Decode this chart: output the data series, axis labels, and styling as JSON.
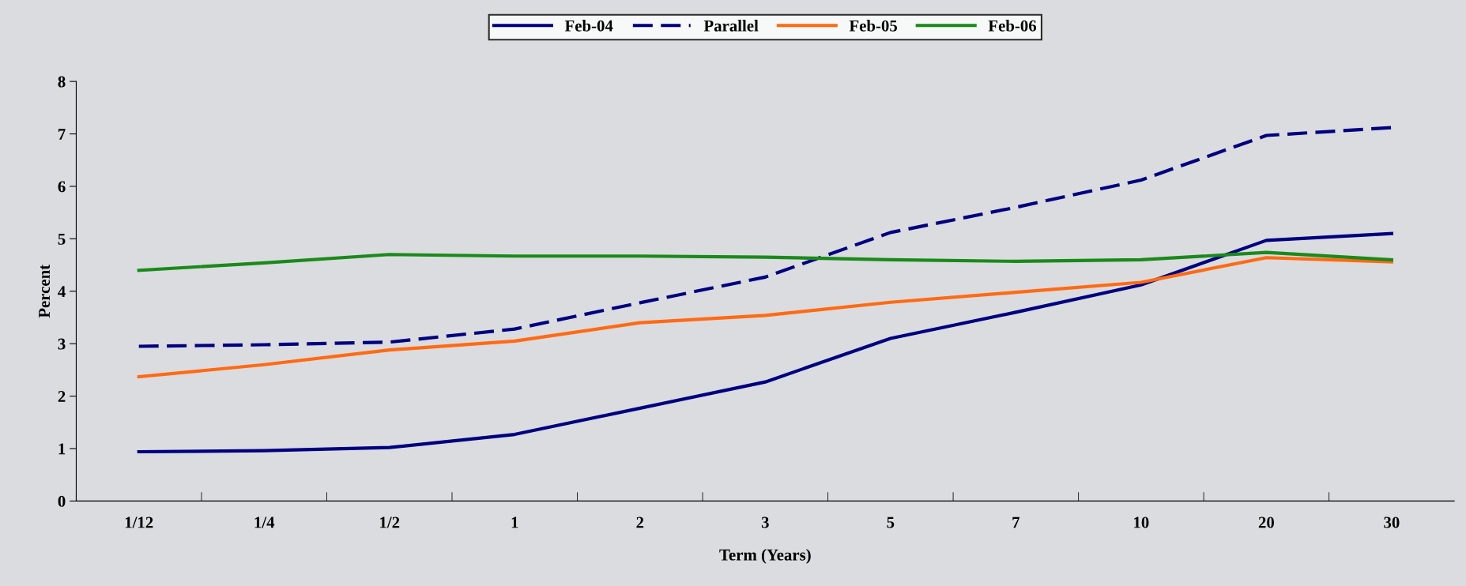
{
  "chart_data": {
    "type": "line",
    "xlabel": "Term (Years)",
    "ylabel": "Percent",
    "categories": [
      "1/12",
      "1/4",
      "1/2",
      "1",
      "2",
      "3",
      "5",
      "7",
      "10",
      "20",
      "30"
    ],
    "ylim": [
      0,
      8
    ],
    "yticks": [
      0,
      1,
      2,
      3,
      4,
      5,
      6,
      7,
      8
    ],
    "grid": false,
    "legend": "top",
    "marker": "none",
    "series": [
      {
        "name": "Feb-04",
        "color": "#000080",
        "line_style": "solid",
        "values": [
          0.94,
          0.96,
          1.02,
          1.27,
          1.77,
          2.27,
          3.1,
          3.6,
          4.12,
          4.97,
          5.1
        ]
      },
      {
        "name": "Parallel",
        "color": "#000080",
        "line_style": "dashed",
        "values": [
          2.95,
          2.98,
          3.03,
          3.28,
          3.78,
          4.27,
          5.12,
          5.6,
          6.12,
          6.97,
          7.12
        ]
      },
      {
        "name": "Feb-05",
        "color": "#ff6a13",
        "line_style": "solid",
        "values": [
          2.37,
          2.6,
          2.88,
          3.05,
          3.4,
          3.54,
          3.79,
          3.98,
          4.17,
          4.64,
          4.56
        ]
      },
      {
        "name": "Feb-06",
        "color": "#1a8a1a",
        "line_style": "solid",
        "values": [
          4.4,
          4.54,
          4.7,
          4.67,
          4.67,
          4.65,
          4.6,
          4.57,
          4.6,
          4.74,
          4.6
        ]
      }
    ]
  }
}
